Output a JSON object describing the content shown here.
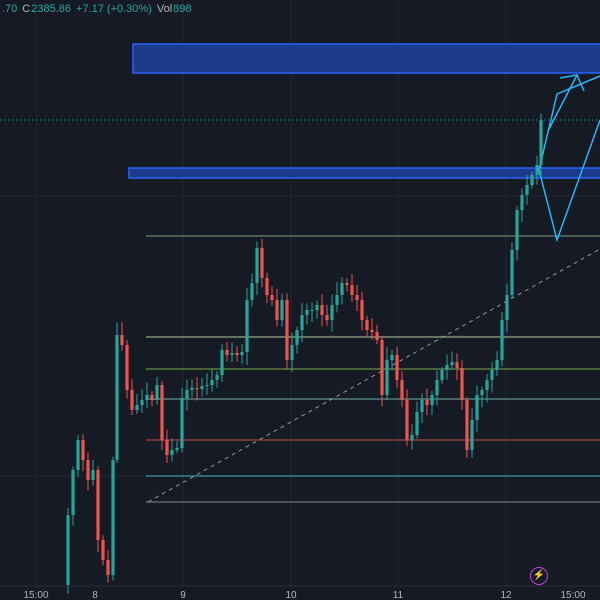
{
  "header": {
    "open_fragment": ".70",
    "close_label": "C",
    "close_value": "2385.86",
    "change": "+7.17 (+0.30%)",
    "volume_label": "Vol",
    "volume_value": "898"
  },
  "time_axis": {
    "labels": [
      "15:00",
      "8",
      "9",
      "10",
      "11",
      "12",
      "15:00"
    ]
  },
  "colors": {
    "background": "#161a25",
    "bullish": "#26a69a",
    "bearish": "#ef5350",
    "zone_fill": "#1e3a8a",
    "zone_border": "#2962ff",
    "projection": "#29b6f6"
  },
  "icons": {
    "flash": "lightning-bolt-icon"
  }
}
